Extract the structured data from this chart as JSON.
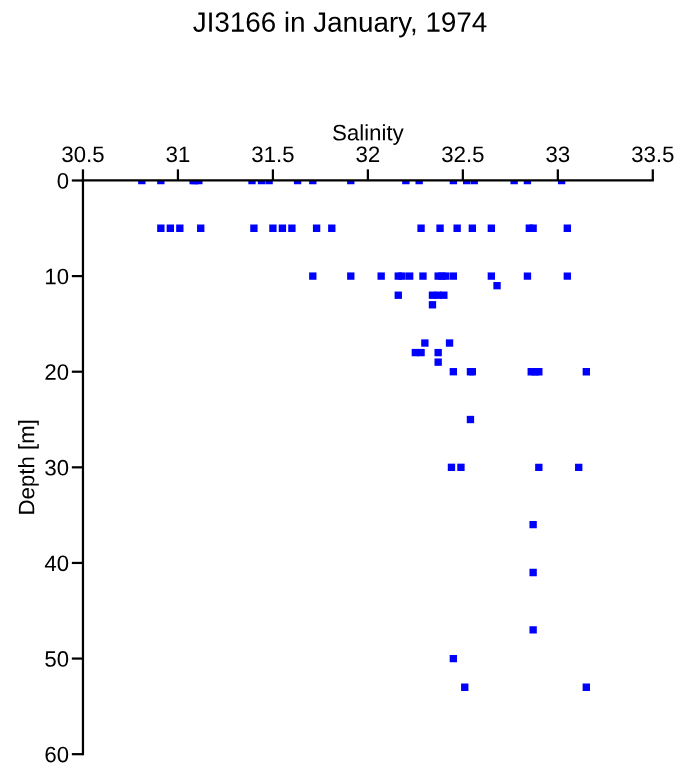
{
  "chart_data": {
    "type": "scatter",
    "title": "JI3166 in January, 1974",
    "xlabel": "Salinity",
    "ylabel": "Depth [m]",
    "xlim": [
      30.5,
      33.5
    ],
    "xticks": [
      30.5,
      31,
      31.5,
      32,
      32.5,
      33,
      33.5
    ],
    "ylim": [
      60,
      0
    ],
    "yticks": [
      0,
      10,
      20,
      30,
      40,
      50,
      60
    ],
    "grid": false,
    "marker": "square",
    "series": [
      {
        "color": "#0000ff",
        "x": [
          30.81,
          30.91,
          31.08,
          31.09,
          31.11,
          31.39,
          31.44,
          31.48,
          31.63,
          31.71,
          31.91,
          32.2,
          32.27,
          32.45,
          32.52,
          32.56,
          32.77,
          32.84,
          33.02,
          30.91,
          30.96,
          31.01,
          31.12,
          31.4,
          31.5,
          31.55,
          31.6,
          31.73,
          31.81,
          32.28,
          32.38,
          32.47,
          32.55,
          32.65,
          32.85,
          32.87,
          33.05,
          31.71,
          31.91,
          32.07,
          32.16,
          32.18,
          32.22,
          32.29,
          32.37,
          32.39,
          32.41,
          32.45,
          32.65,
          32.84,
          33.05,
          32.68,
          32.16,
          32.34,
          32.37,
          32.4,
          32.34,
          32.3,
          32.43,
          32.25,
          32.28,
          32.37,
          32.37,
          32.45,
          32.54,
          32.55,
          32.86,
          32.88,
          32.9,
          33.15,
          32.54,
          32.44,
          32.49,
          32.9,
          33.11,
          32.87,
          32.87,
          32.87,
          32.45,
          32.51,
          33.15
        ],
        "values": [
          0,
          0,
          0,
          0,
          0,
          0,
          0,
          0,
          0,
          0,
          0,
          0,
          0,
          0,
          0,
          0,
          0,
          0,
          0,
          5,
          5,
          5,
          5,
          5,
          5,
          5,
          5,
          5,
          5,
          5,
          5,
          5,
          5,
          5,
          5,
          5,
          5,
          10,
          10,
          10,
          10,
          10,
          10,
          10,
          10,
          10,
          10,
          10,
          10,
          10,
          10,
          11,
          12,
          12,
          12,
          12,
          13,
          17,
          17,
          18,
          18,
          18,
          19,
          20,
          20,
          20,
          20,
          20,
          20,
          20,
          25,
          30,
          30,
          30,
          30,
          36,
          41,
          47,
          50,
          53,
          53
        ]
      }
    ]
  }
}
